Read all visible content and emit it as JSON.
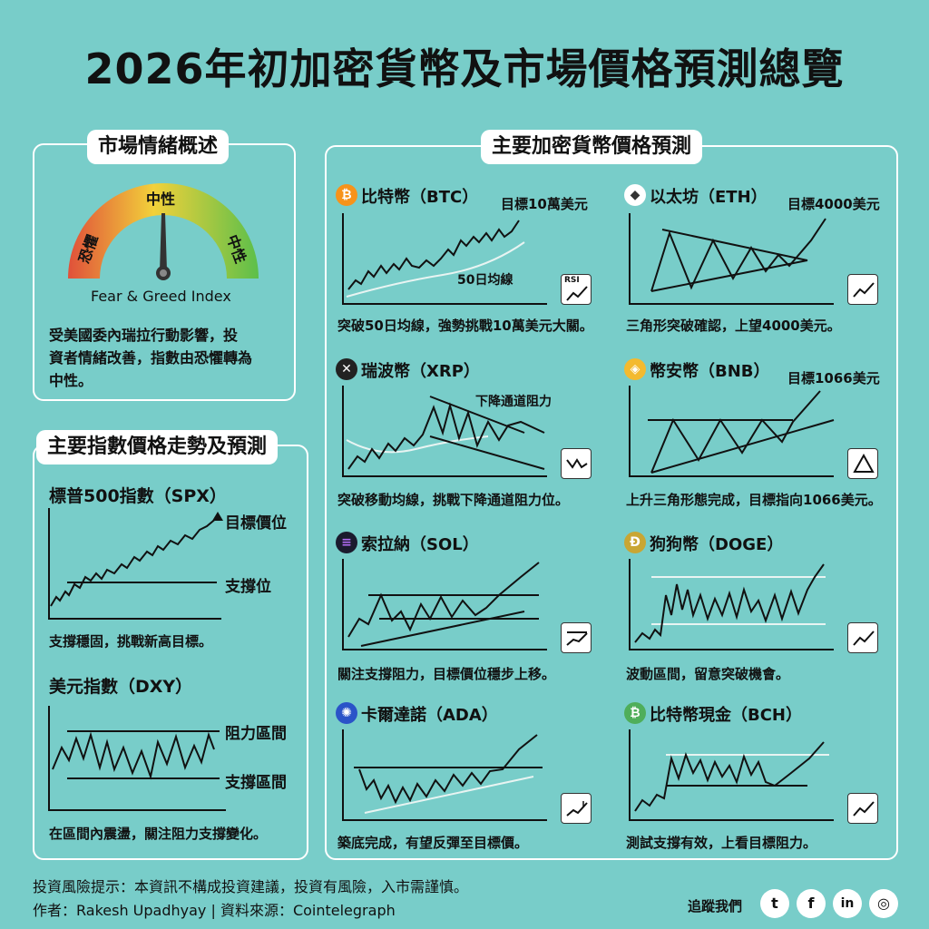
{
  "title": "2026年初加密貨幣及市場價格預測總覽",
  "sentiment": {
    "heading": "市場情緒概述",
    "gauge_labels": {
      "fear": "恐懼",
      "neutral": "中性",
      "greed": "中性"
    },
    "index_name": "Fear & Greed Index",
    "description_lines": [
      "受美國委內瑞拉行動影響，投",
      "資者情緒改善，指數由恐懼轉為",
      "中性。"
    ]
  },
  "indices": {
    "heading": "主要指數價格走勢及預測",
    "spx": {
      "title": "標普500指數（SPX）",
      "target_label": "目標價位",
      "support_label": "支撐位",
      "description": "支撐穩固，挑戰新高目標。"
    },
    "dxy": {
      "title": "美元指數（DXY）",
      "resistance_label": "阻力區間",
      "support_label": "支撐區間",
      "description": "在區間內震盪，關注阻力支撐變化。"
    }
  },
  "crypto": {
    "heading": "主要加密貨幣價格預測",
    "btc": {
      "title": "比特幣（BTC）",
      "target": "目標10萬美元",
      "ma_label": "50日均線",
      "rsi_label": "RSI",
      "description": "突破50日均線，強勢挑戰10萬美元大關。"
    },
    "eth": {
      "title": "以太坊（ETH）",
      "target": "目標4000美元",
      "description": "三角形突破確認，上望4000美元。"
    },
    "xrp": {
      "title": "瑞波幣（XRP）",
      "channel_label": "下降通道阻力",
      "description": "突破移動均線，挑戰下降通道阻力位。"
    },
    "bnb": {
      "title": "幣安幣（BNB）",
      "target": "目標1066美元",
      "description": "上升三角形態完成，目標指向1066美元。"
    },
    "sol": {
      "title": "索拉納（SOL）",
      "description": "關注支撐阻力，目標價位穩步上移。"
    },
    "doge": {
      "title": "狗狗幣（DOGE）",
      "description": "波動區間，留意突破機會。"
    },
    "ada": {
      "title": "卡爾達諾（ADA）",
      "description": "築底完成，有望反彈至目標價。"
    },
    "bch": {
      "title": "比特幣現金（BCH）",
      "description": "測試支撐有效，上看目標阻力。"
    }
  },
  "footer": {
    "risk": "投資風險提示：本資訊不構成投資建議，投資有風險，入市需謹慎。",
    "author": "作者：Rakesh Upadhyay | 資料來源：Cointelegraph",
    "follow": "追蹤我們"
  },
  "colors": {
    "background": "#78cdc9",
    "btc": "#f7931a",
    "bnb": "#f3ba2f",
    "ada": "#2a53c8",
    "bch": "#4fae5a",
    "doge": "#c9a633",
    "ma_line": "#e8f4f2"
  },
  "icons": [
    "bitcoin-icon",
    "ethereum-icon",
    "xrp-icon",
    "bnb-icon",
    "solana-icon",
    "doge-icon",
    "cardano-icon",
    "bitcoin-cash-icon",
    "twitter-icon",
    "facebook-icon",
    "linkedin-icon",
    "instagram-icon"
  ]
}
